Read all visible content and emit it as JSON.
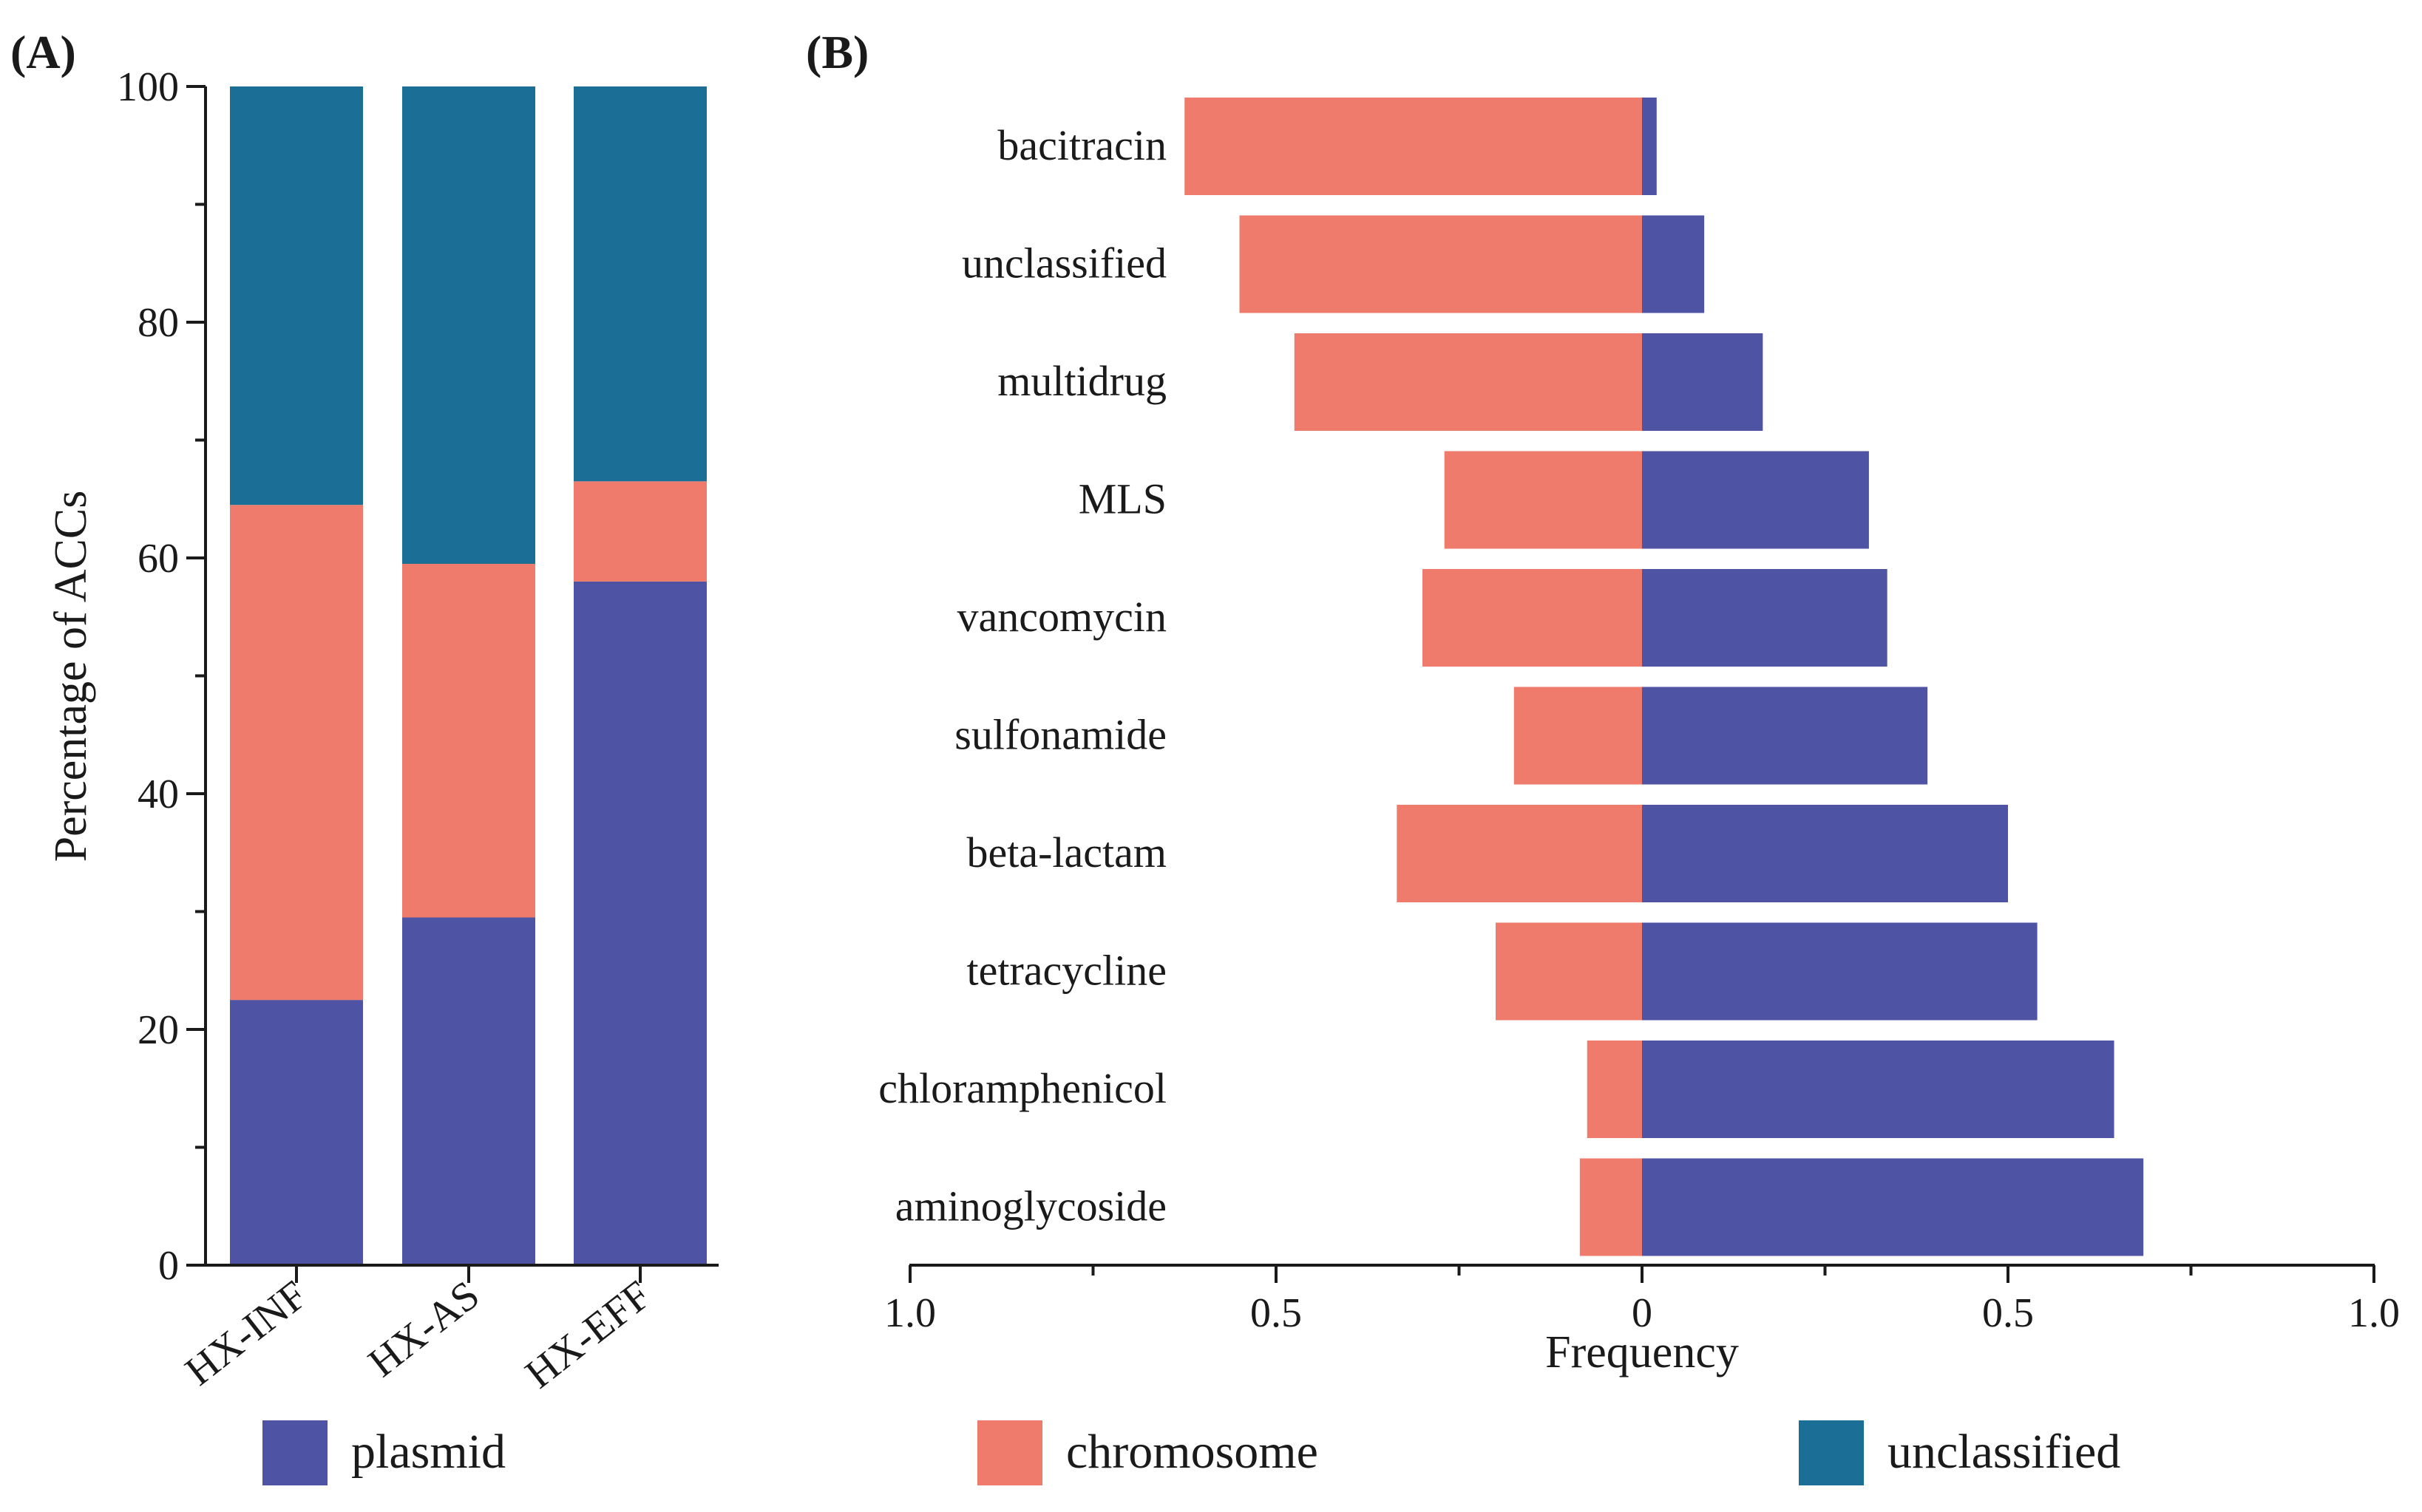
{
  "colors": {
    "plasmid": "#4f53a4",
    "chromosome": "#ee7b6b",
    "unclassified": "#1b6e96"
  },
  "chart_data": [
    {
      "panel_label": "(A)",
      "type": "bar",
      "stacked": true,
      "categories": [
        "HX-INF",
        "HX-AS",
        "HX-EFF"
      ],
      "series": [
        {
          "name": "plasmid",
          "values": [
            22.5,
            29.5,
            58.0
          ]
        },
        {
          "name": "chromosome",
          "values": [
            42.0,
            30.0,
            8.5
          ]
        },
        {
          "name": "unclassified",
          "values": [
            35.5,
            40.5,
            33.5
          ]
        }
      ],
      "ylabel": "Percentage of ACCs",
      "ylim": [
        0,
        100
      ],
      "yticks": [
        "0",
        "20",
        "40",
        "60",
        "80",
        "100"
      ]
    },
    {
      "panel_label": "(B)",
      "type": "bar",
      "orientation": "horizontal-diverging",
      "categories": [
        "bacitracin",
        "unclassified",
        "multidrug",
        "MLS",
        "vancomycin",
        "sulfonamide",
        "beta-lactam",
        "tetracycline",
        "chloramphenicol",
        "aminoglycoside"
      ],
      "series": [
        {
          "name": "chromosome",
          "side": "left",
          "values": [
            0.625,
            0.55,
            0.475,
            0.27,
            0.3,
            0.175,
            0.335,
            0.2,
            0.075,
            0.085
          ]
        },
        {
          "name": "plasmid",
          "side": "right",
          "values": [
            0.02,
            0.085,
            0.165,
            0.31,
            0.335,
            0.39,
            0.5,
            0.54,
            0.645,
            0.685
          ]
        }
      ],
      "xlabel": "Frequency",
      "xlim": [
        -1,
        1
      ],
      "xticks": [
        "1.0",
        "0.5",
        "0",
        "0.5",
        "1.0"
      ]
    }
  ],
  "legend": [
    {
      "key": "plasmid",
      "label": "plasmid"
    },
    {
      "key": "chromosome",
      "label": "chromosome"
    },
    {
      "key": "unclassified",
      "label": "unclassified"
    }
  ]
}
